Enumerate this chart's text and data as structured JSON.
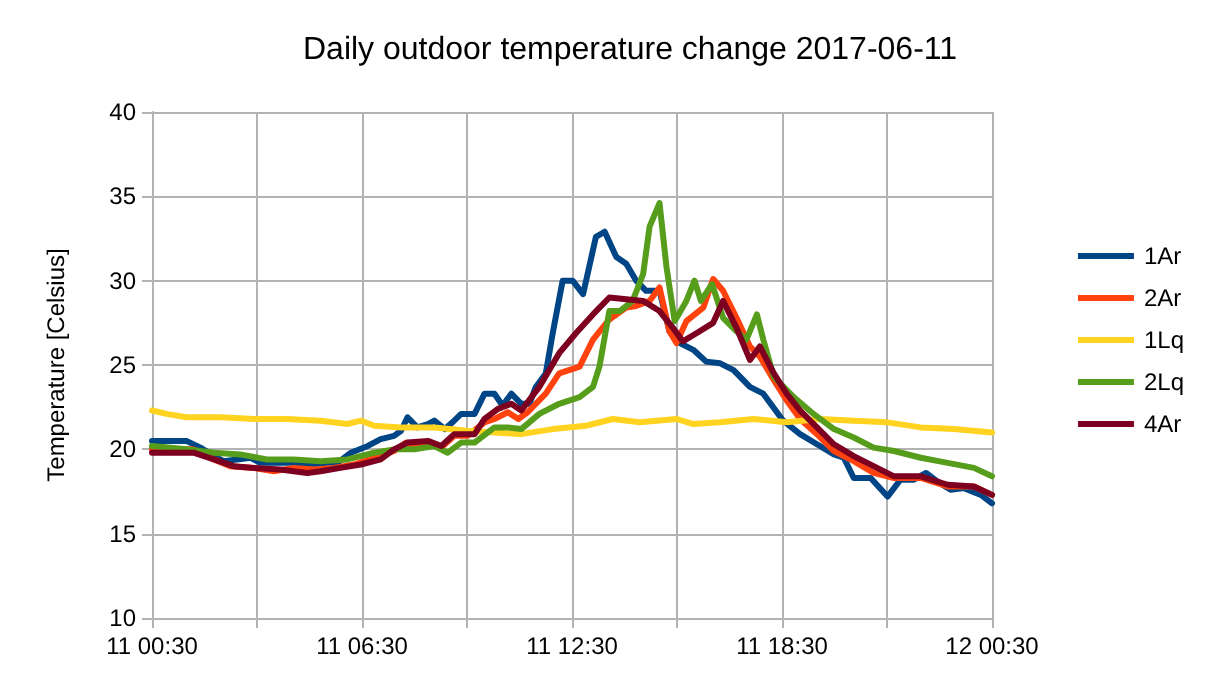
{
  "chart_data": {
    "type": "line",
    "title": "Daily outdoor temperature change 2017-06-11",
    "ylabel": "Temperature [Celsius]",
    "xlim": [
      "2017-06-11T00:30",
      "2017-06-12T00:30"
    ],
    "xticks": [
      {
        "value": "2017-06-11T00:30",
        "label": "11 00:30"
      },
      {
        "value": "2017-06-11T03:30",
        "label": null
      },
      {
        "value": "2017-06-11T06:30",
        "label": "11 06:30"
      },
      {
        "value": "2017-06-11T09:30",
        "label": null
      },
      {
        "value": "2017-06-11T12:30",
        "label": "11 12:30"
      },
      {
        "value": "2017-06-11T15:30",
        "label": null
      },
      {
        "value": "2017-06-11T18:30",
        "label": "11 18:30"
      },
      {
        "value": "2017-06-11T21:30",
        "label": null
      },
      {
        "value": "2017-06-12T00:30",
        "label": "12 00:30"
      }
    ],
    "ylim": [
      10,
      40
    ],
    "yticks": [
      10,
      15,
      20,
      25,
      30,
      35,
      40
    ],
    "grid": true,
    "legend": "right",
    "marker": "none",
    "line_style": "solid",
    "series": [
      {
        "name": "1Ar",
        "color": "#004586",
        "x": [
          "2017-06-11T00:30",
          "2017-06-11T01:29",
          "2017-06-11T01:53",
          "2017-06-11T02:16",
          "2017-06-11T02:33",
          "2017-06-11T02:56",
          "2017-06-11T03:19",
          "2017-06-11T03:36",
          "2017-06-11T04:10",
          "2017-06-11T04:33",
          "2017-06-11T05:02",
          "2017-06-11T05:31",
          "2017-06-11T05:48",
          "2017-06-11T06:11",
          "2017-06-11T06:40",
          "2017-06-11T07:02",
          "2017-06-11T07:25",
          "2017-06-11T07:37",
          "2017-06-11T07:48",
          "2017-06-11T08:05",
          "2017-06-11T08:23",
          "2017-06-11T08:34",
          "2017-06-11T08:52",
          "2017-06-11T09:08",
          "2017-06-11T09:20",
          "2017-06-11T09:43",
          "2017-06-11T10:00",
          "2017-06-11T10:17",
          "2017-06-11T10:31",
          "2017-06-11T10:46",
          "2017-06-11T11:03",
          "2017-06-11T11:17",
          "2017-06-11T11:28",
          "2017-06-11T11:45",
          "2017-06-11T11:57",
          "2017-06-11T12:14",
          "2017-06-11T12:31",
          "2017-06-11T12:49",
          "2017-06-11T13:11",
          "2017-06-11T13:26",
          "2017-06-11T13:46",
          "2017-06-11T14:03",
          "2017-06-11T14:20",
          "2017-06-11T14:37",
          "2017-06-11T15:00",
          "2017-06-11T15:17",
          "2017-06-11T15:35",
          "2017-06-11T15:58",
          "2017-06-11T16:20",
          "2017-06-11T16:44",
          "2017-06-11T17:07",
          "2017-06-11T17:35",
          "2017-06-11T17:58",
          "2017-06-11T18:32",
          "2017-06-11T19:01",
          "2017-06-11T19:30",
          "2017-06-11T19:59",
          "2017-06-11T20:16",
          "2017-06-11T20:33",
          "2017-06-11T21:02",
          "2017-06-11T21:31",
          "2017-06-11T21:53",
          "2017-06-11T22:16",
          "2017-06-11T22:37",
          "2017-06-11T22:56",
          "2017-06-11T23:19",
          "2017-06-11T23:42",
          "2017-06-12T00:11",
          "2017-06-12T00:30"
        ],
        "values": [
          20.5,
          20.5,
          20.1,
          19.6,
          19.3,
          19.4,
          19.5,
          19.2,
          19.2,
          19.2,
          19.1,
          19.2,
          19.2,
          19.8,
          20.2,
          20.6,
          20.8,
          21.1,
          21.9,
          21.3,
          21.5,
          21.7,
          21.2,
          21.7,
          22.1,
          22.1,
          23.3,
          23.3,
          22.6,
          23.3,
          22.7,
          22.7,
          23.7,
          24.5,
          26.9,
          30.0,
          30.0,
          29.2,
          32.6,
          32.9,
          31.4,
          31.0,
          30.0,
          29.4,
          29.4,
          27.0,
          26.3,
          25.9,
          25.2,
          25.1,
          24.7,
          23.7,
          23.3,
          21.7,
          20.9,
          20.3,
          19.7,
          19.5,
          18.3,
          18.3,
          17.2,
          18.2,
          18.2,
          18.6,
          18.1,
          17.6,
          17.7,
          17.3,
          16.8
        ]
      },
      {
        "name": "2Ar",
        "color": "#ff420e",
        "x": [
          "2017-06-11T00:30",
          "2017-06-11T01:41",
          "2017-06-11T02:16",
          "2017-06-11T02:44",
          "2017-06-11T03:25",
          "2017-06-11T03:59",
          "2017-06-11T04:33",
          "2017-06-11T05:08",
          "2017-06-11T05:42",
          "2017-06-11T06:16",
          "2017-06-11T06:51",
          "2017-06-11T07:25",
          "2017-06-11T07:46",
          "2017-06-11T08:00",
          "2017-06-11T08:23",
          "2017-06-11T08:46",
          "2017-06-11T09:08",
          "2017-06-11T09:31",
          "2017-06-11T10:00",
          "2017-06-11T10:17",
          "2017-06-11T10:40",
          "2017-06-11T10:58",
          "2017-06-11T11:14",
          "2017-06-11T11:45",
          "2017-06-11T12:08",
          "2017-06-11T12:43",
          "2017-06-11T13:06",
          "2017-06-11T13:34",
          "2017-06-11T14:03",
          "2017-06-11T14:20",
          "2017-06-11T14:43",
          "2017-06-11T15:00",
          "2017-06-11T15:17",
          "2017-06-11T15:29",
          "2017-06-11T15:46",
          "2017-06-11T16:15",
          "2017-06-11T16:32",
          "2017-06-11T16:49",
          "2017-06-11T17:12",
          "2017-06-11T17:35",
          "2017-06-11T17:52",
          "2017-06-11T18:16",
          "2017-06-11T18:38",
          "2017-06-11T19:01",
          "2017-06-11T19:30",
          "2017-06-11T19:59",
          "2017-06-11T20:33",
          "2017-06-11T21:07",
          "2017-06-11T21:42",
          "2017-06-11T22:28",
          "2017-06-11T23:14",
          "2017-06-11T23:59",
          "2017-06-12T00:30"
        ],
        "values": [
          20.0,
          20.0,
          19.4,
          19.0,
          18.9,
          18.7,
          18.9,
          18.8,
          18.9,
          19.1,
          19.5,
          19.9,
          20.4,
          20.1,
          20.3,
          20.1,
          20.8,
          20.8,
          21.6,
          21.8,
          22.2,
          21.8,
          22.2,
          23.3,
          24.5,
          24.9,
          26.5,
          27.7,
          28.4,
          28.5,
          28.8,
          29.6,
          27.0,
          26.3,
          27.6,
          28.4,
          30.1,
          29.4,
          27.8,
          26.1,
          25.5,
          24.1,
          22.9,
          21.8,
          20.9,
          19.9,
          19.3,
          18.6,
          18.3,
          18.3,
          17.8,
          17.8,
          17.3
        ]
      },
      {
        "name": "1Lq",
        "color": "#ffd320",
        "x": [
          "2017-06-11T00:30",
          "2017-06-11T00:55",
          "2017-06-11T01:29",
          "2017-06-11T02:27",
          "2017-06-11T03:25",
          "2017-06-11T04:22",
          "2017-06-11T05:19",
          "2017-06-11T06:05",
          "2017-06-11T06:28",
          "2017-06-11T06:51",
          "2017-06-11T07:37",
          "2017-06-11T08:34",
          "2017-06-11T09:31",
          "2017-06-11T10:17",
          "2017-06-11T11:03",
          "2017-06-11T11:57",
          "2017-06-11T12:54",
          "2017-06-11T13:40",
          "2017-06-11T14:26",
          "2017-06-11T15:29",
          "2017-06-11T15:58",
          "2017-06-11T16:44",
          "2017-06-11T17:41",
          "2017-06-11T18:38",
          "2017-06-11T19:35",
          "2017-06-11T20:33",
          "2017-06-11T21:31",
          "2017-06-11T22:28",
          "2017-06-11T23:25",
          "2017-06-12T00:30"
        ],
        "values": [
          22.3,
          22.1,
          21.9,
          21.9,
          21.8,
          21.8,
          21.7,
          21.5,
          21.7,
          21.4,
          21.3,
          21.3,
          21.1,
          21.0,
          20.9,
          21.2,
          21.4,
          21.8,
          21.6,
          21.8,
          21.5,
          21.6,
          21.8,
          21.6,
          21.8,
          21.7,
          21.6,
          21.3,
          21.2,
          21.0
        ]
      },
      {
        "name": "2Lq",
        "color": "#579d1c",
        "x": [
          "2017-06-11T00:30",
          "2017-06-11T01:29",
          "2017-06-11T02:16",
          "2017-06-11T03:01",
          "2017-06-11T03:47",
          "2017-06-11T04:33",
          "2017-06-11T05:19",
          "2017-06-11T06:05",
          "2017-06-11T06:51",
          "2017-06-11T07:25",
          "2017-06-11T08:00",
          "2017-06-11T08:34",
          "2017-06-11T08:57",
          "2017-06-11T09:20",
          "2017-06-11T09:43",
          "2017-06-11T10:17",
          "2017-06-11T10:40",
          "2017-06-11T11:03",
          "2017-06-11T11:34",
          "2017-06-11T12:08",
          "2017-06-11T12:43",
          "2017-06-11T13:06",
          "2017-06-11T13:17",
          "2017-06-11T13:34",
          "2017-06-11T13:52",
          "2017-06-11T14:14",
          "2017-06-11T14:32",
          "2017-06-11T14:43",
          "2017-06-11T15:00",
          "2017-06-11T15:12",
          "2017-06-11T15:26",
          "2017-06-11T15:46",
          "2017-06-11T16:00",
          "2017-06-11T16:11",
          "2017-06-11T16:30",
          "2017-06-11T16:49",
          "2017-06-11T17:12",
          "2017-06-11T17:29",
          "2017-06-11T17:47",
          "2017-06-11T17:58",
          "2017-06-11T18:16",
          "2017-06-11T18:50",
          "2017-06-11T19:24",
          "2017-06-11T19:59",
          "2017-06-11T20:33",
          "2017-06-11T21:07",
          "2017-06-11T21:42",
          "2017-06-11T22:28",
          "2017-06-11T23:14",
          "2017-06-11T23:59",
          "2017-06-12T00:30"
        ],
        "values": [
          20.2,
          20.0,
          19.8,
          19.7,
          19.4,
          19.4,
          19.3,
          19.4,
          19.8,
          20.0,
          20.0,
          20.2,
          19.8,
          20.4,
          20.4,
          21.3,
          21.3,
          21.2,
          22.1,
          22.7,
          23.1,
          23.7,
          24.9,
          28.2,
          28.2,
          28.8,
          30.4,
          33.2,
          34.6,
          30.8,
          27.6,
          28.8,
          30.0,
          28.8,
          29.8,
          27.8,
          27.0,
          26.5,
          28.0,
          26.5,
          24.3,
          23.1,
          22.1,
          21.2,
          20.7,
          20.1,
          19.9,
          19.5,
          19.2,
          18.9,
          18.4
        ]
      },
      {
        "name": "4Ar",
        "color": "#7e0021",
        "x": [
          "2017-06-11T00:30",
          "2017-06-11T01:41",
          "2017-06-11T02:16",
          "2017-06-11T02:50",
          "2017-06-11T03:25",
          "2017-06-11T04:10",
          "2017-06-11T04:56",
          "2017-06-11T05:19",
          "2017-06-11T05:53",
          "2017-06-11T06:28",
          "2017-06-11T07:02",
          "2017-06-11T07:25",
          "2017-06-11T07:48",
          "2017-06-11T08:23",
          "2017-06-11T08:46",
          "2017-06-11T09:08",
          "2017-06-11T09:43",
          "2017-06-11T10:00",
          "2017-06-11T10:23",
          "2017-06-11T10:46",
          "2017-06-11T11:03",
          "2017-06-11T11:34",
          "2017-06-11T12:08",
          "2017-06-11T12:37",
          "2017-06-11T13:06",
          "2017-06-11T13:34",
          "2017-06-11T14:03",
          "2017-06-11T14:32",
          "2017-06-11T15:00",
          "2017-06-11T15:23",
          "2017-06-11T15:40",
          "2017-06-11T16:04",
          "2017-06-11T16:32",
          "2017-06-11T16:49",
          "2017-06-11T17:12",
          "2017-06-11T17:35",
          "2017-06-11T17:52",
          "2017-06-11T18:16",
          "2017-06-11T18:38",
          "2017-06-11T19:01",
          "2017-06-11T19:30",
          "2017-06-11T19:59",
          "2017-06-11T20:33",
          "2017-06-11T21:07",
          "2017-06-11T21:42",
          "2017-06-11T22:28",
          "2017-06-11T23:14",
          "2017-06-11T23:59",
          "2017-06-12T00:30"
        ],
        "values": [
          19.8,
          19.8,
          19.4,
          19.0,
          18.9,
          18.8,
          18.6,
          18.7,
          18.9,
          19.1,
          19.4,
          20.0,
          20.4,
          20.5,
          20.2,
          20.9,
          20.9,
          21.8,
          22.4,
          22.7,
          22.3,
          23.7,
          25.7,
          26.9,
          28.0,
          29.0,
          28.9,
          28.8,
          28.2,
          27.2,
          26.4,
          26.9,
          27.5,
          28.8,
          27.2,
          25.3,
          26.1,
          24.5,
          23.3,
          22.3,
          21.3,
          20.3,
          19.6,
          19.0,
          18.4,
          18.4,
          17.9,
          17.8,
          17.3
        ]
      }
    ]
  }
}
